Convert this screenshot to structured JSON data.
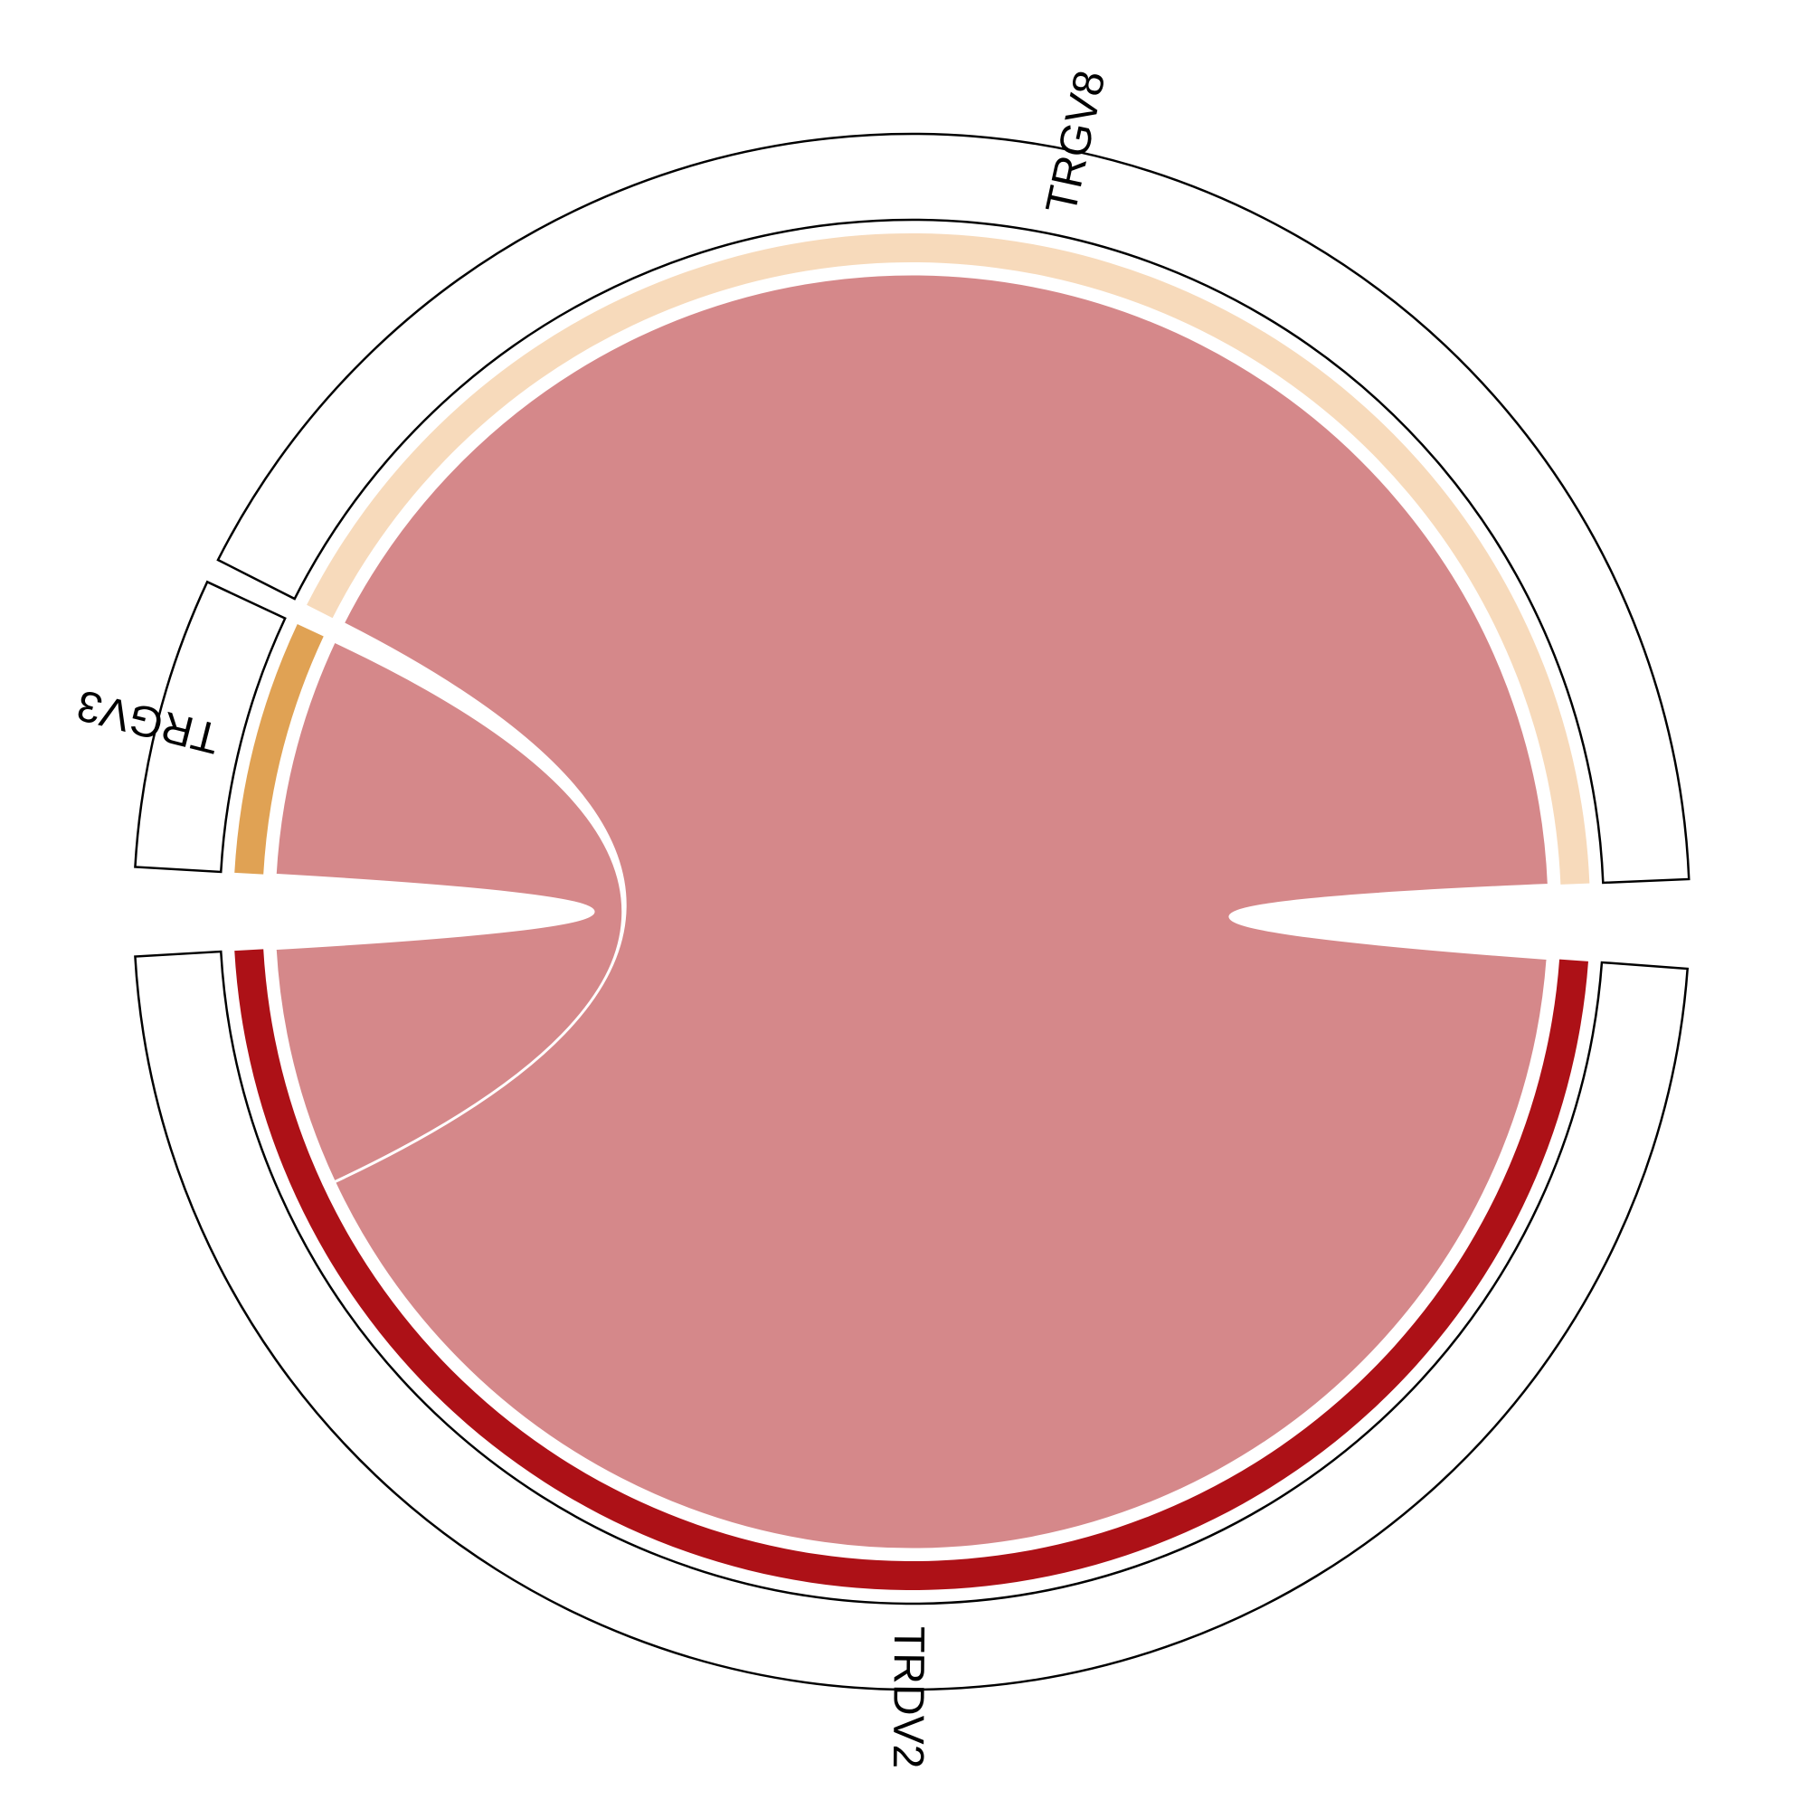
{
  "chart_data": {
    "type": "chord",
    "title": "",
    "sectors": [
      {
        "name": "TRGV3",
        "value": 12,
        "color": "#E0A254"
      },
      {
        "name": "TRGV8",
        "value": 83,
        "color": "#F7DABB"
      },
      {
        "name": "TRDV2",
        "value": 95,
        "color": "#AD1117"
      }
    ],
    "links": [
      {
        "from": "TRGV3",
        "to": "TRDV2",
        "value": 12,
        "color": "#D5888A"
      },
      {
        "from": "TRGV8",
        "to": "TRDV2",
        "value": 83,
        "color": "#D5888A"
      }
    ],
    "label_track_outline": "#000000",
    "background": "#FFFFFF"
  }
}
